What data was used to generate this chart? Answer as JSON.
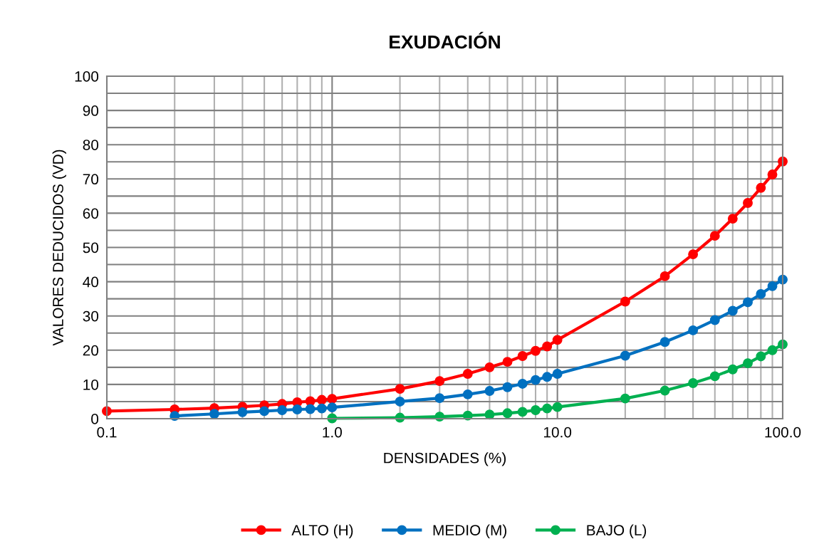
{
  "chart_data": {
    "type": "line",
    "title": "EXUDACIÓN",
    "xlabel": "DENSIDADES (%)",
    "ylabel": "VALORES DEDUCIDOS (VD)",
    "log": "x",
    "grid": true,
    "legend": "bottom",
    "marker": "circle",
    "line_style": "solid",
    "xlim": [
      0.1,
      100
    ],
    "xticks": [
      {
        "value": 0.1,
        "label": "0.1"
      },
      {
        "value": 1,
        "label": "1.0"
      },
      {
        "value": 10,
        "label": "10.0"
      },
      {
        "value": 100,
        "label": "100.0"
      }
    ],
    "ylim": [
      0,
      100
    ],
    "yticks": [
      0,
      {
        "value": 5,
        "label": null
      },
      10,
      {
        "value": 15,
        "label": null
      },
      20,
      {
        "value": 25,
        "label": null
      },
      30,
      {
        "value": 35,
        "label": null
      },
      40,
      {
        "value": 45,
        "label": null
      },
      50,
      {
        "value": 55,
        "label": null
      },
      60,
      {
        "value": 65,
        "label": null
      },
      70,
      {
        "value": 75,
        "label": null
      },
      80,
      {
        "value": 85,
        "label": null
      },
      90,
      {
        "value": 95,
        "label": null
      },
      100
    ],
    "series": [
      {
        "name": "ALTO (H)",
        "color": "#ff0000",
        "x": [
          0.1,
          0.2,
          0.3,
          0.4,
          0.5,
          0.6,
          0.7,
          0.8,
          0.9,
          1,
          2,
          3,
          4,
          5,
          6,
          7,
          8,
          9,
          10,
          20,
          30,
          40,
          50,
          60,
          70,
          80,
          90,
          100
        ],
        "values": [
          2.2,
          2.7,
          3.1,
          3.5,
          3.9,
          4.3,
          4.8,
          5.1,
          5.5,
          5.8,
          8.7,
          11.0,
          13.1,
          15.0,
          16.6,
          18.3,
          19.8,
          21.1,
          23.0,
          34.2,
          41.6,
          48.0,
          53.4,
          58.4,
          63.0,
          67.4,
          71.3,
          75.1
        ]
      },
      {
        "name": "MEDIO (M)",
        "color": "#0070c0",
        "x": [
          0.2,
          0.3,
          0.4,
          0.5,
          0.6,
          0.7,
          0.8,
          0.9,
          1,
          2,
          3,
          4,
          5,
          6,
          7,
          8,
          9,
          10,
          20,
          30,
          40,
          50,
          60,
          70,
          80,
          90,
          100
        ],
        "values": [
          0.8,
          1.4,
          1.9,
          2.2,
          2.5,
          2.7,
          2.8,
          3.0,
          3.3,
          5.0,
          6.0,
          7.1,
          8.1,
          9.2,
          10.2,
          11.3,
          12.2,
          13.1,
          18.4,
          22.4,
          25.8,
          28.8,
          31.5,
          34.0,
          36.4,
          38.7,
          40.6
        ]
      },
      {
        "name": "BAJO (L)",
        "color": "#00b050",
        "x": [
          1,
          2,
          3,
          4,
          5,
          6,
          7,
          8,
          9,
          10,
          20,
          30,
          40,
          50,
          60,
          70,
          80,
          90,
          100
        ],
        "values": [
          0.1,
          0.3,
          0.6,
          0.9,
          1.2,
          1.6,
          2.0,
          2.5,
          3.0,
          3.4,
          5.9,
          8.2,
          10.4,
          12.4,
          14.4,
          16.2,
          18.2,
          20.0,
          21.7
        ]
      }
    ]
  }
}
